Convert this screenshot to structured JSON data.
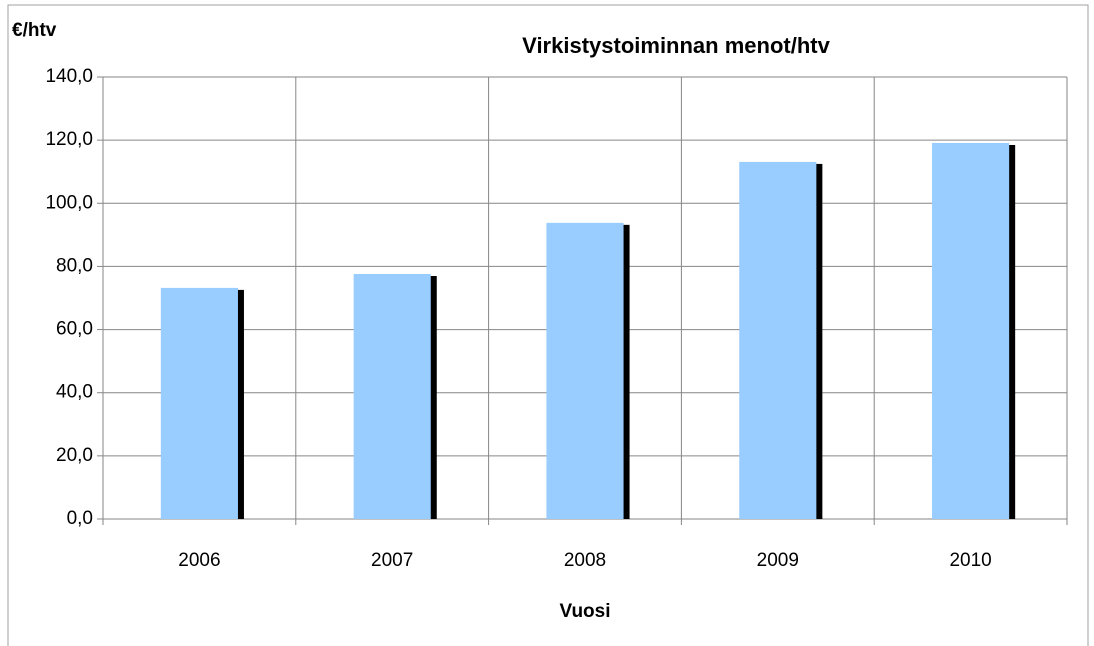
{
  "chart_data": {
    "type": "bar",
    "title": "Virkistystoiminnan menot/htv",
    "y_label": "€/htv",
    "x_label": "Vuosi",
    "categories": [
      "2006",
      "2007",
      "2008",
      "2009",
      "2010"
    ],
    "values": [
      73.2,
      77.6,
      93.8,
      113.1,
      119.1
    ],
    "color": "#99ccff",
    "shadow_color": "#000000",
    "ylim": [
      0,
      140
    ],
    "yticks": [
      {
        "value": 0,
        "label": "0,0"
      },
      {
        "value": 20,
        "label": "20,0"
      },
      {
        "value": 40,
        "label": "40,0"
      },
      {
        "value": 60,
        "label": "60,0"
      },
      {
        "value": 80,
        "label": "80,0"
      },
      {
        "value": 100,
        "label": "100,0"
      },
      {
        "value": 120,
        "label": "120,0"
      },
      {
        "value": 140,
        "label": "140,0"
      }
    ],
    "grid": true
  }
}
